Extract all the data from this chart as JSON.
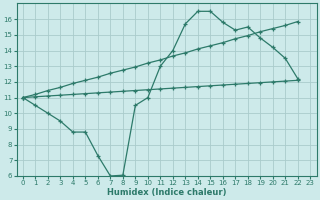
{
  "xlabel": "Humidex (Indice chaleur)",
  "bg_color": "#cdeaea",
  "grid_color": "#aacccc",
  "line_color": "#2d7a6a",
  "xlim": [
    -0.5,
    23.5
  ],
  "ylim": [
    6,
    17
  ],
  "xticks": [
    0,
    1,
    2,
    3,
    4,
    5,
    6,
    7,
    8,
    9,
    10,
    11,
    12,
    13,
    14,
    15,
    16,
    17,
    18,
    19,
    20,
    21,
    22,
    23
  ],
  "yticks": [
    6,
    7,
    8,
    9,
    10,
    11,
    12,
    13,
    14,
    15,
    16
  ],
  "line_wavy_x": [
    0,
    1,
    2,
    3,
    4,
    5,
    6,
    7,
    8,
    9,
    10,
    11,
    12,
    13,
    14,
    15,
    16,
    17,
    18,
    19,
    20,
    21,
    22
  ],
  "line_wavy_y": [
    11.0,
    10.5,
    10.0,
    9.5,
    8.8,
    8.8,
    7.3,
    6.0,
    6.05,
    10.5,
    11.0,
    13.0,
    14.0,
    15.7,
    16.5,
    16.5,
    15.8,
    15.3,
    15.5,
    14.8,
    14.2,
    13.5,
    12.2
  ],
  "line_upper_x": [
    0,
    1,
    2,
    3,
    4,
    5,
    6,
    7,
    8,
    9,
    10,
    11,
    12,
    13,
    14,
    15,
    16,
    17,
    18,
    19,
    20,
    21,
    22
  ],
  "line_upper_y": [
    11.0,
    11.2,
    11.45,
    11.65,
    11.9,
    12.1,
    12.3,
    12.55,
    12.75,
    12.95,
    13.2,
    13.4,
    13.65,
    13.85,
    14.1,
    14.3,
    14.5,
    14.75,
    14.95,
    15.2,
    15.4,
    15.6,
    15.85
  ],
  "line_lower_x": [
    0,
    1,
    2,
    3,
    4,
    5,
    6,
    7,
    8,
    9,
    10,
    11,
    12,
    13,
    14,
    15,
    16,
    17,
    18,
    19,
    20,
    21,
    22
  ],
  "line_lower_y": [
    11.0,
    11.05,
    11.1,
    11.15,
    11.2,
    11.25,
    11.3,
    11.35,
    11.4,
    11.45,
    11.5,
    11.55,
    11.6,
    11.65,
    11.7,
    11.75,
    11.8,
    11.85,
    11.9,
    11.95,
    12.0,
    12.05,
    12.1
  ]
}
